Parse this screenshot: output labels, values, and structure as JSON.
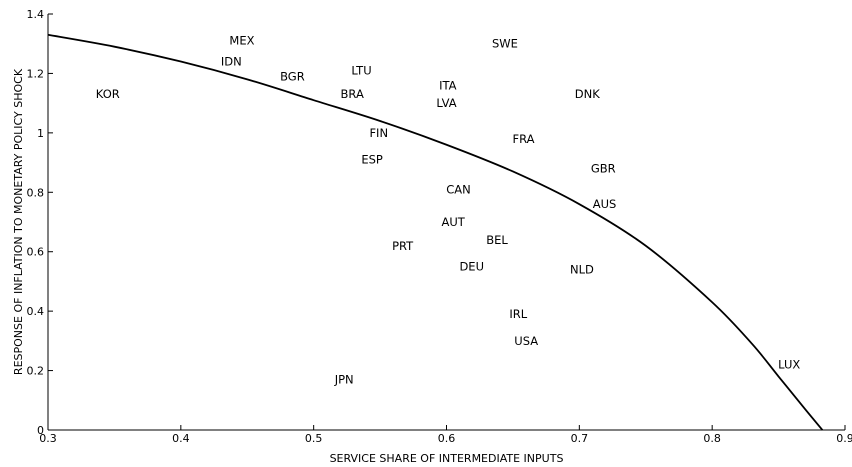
{
  "chart_data": {
    "type": "scatter",
    "xlabel": "SERVICE SHARE OF INTERMEDIATE INPUTS",
    "ylabel": "RESPONSE OF INFLATION TO MONETARY POLICY SHOCK",
    "xlim": [
      0.3,
      0.9
    ],
    "ylim": [
      0,
      1.4
    ],
    "xticks": [
      0.3,
      0.4,
      0.5,
      0.6,
      0.7,
      0.8,
      0.9
    ],
    "xtick_labels": [
      "0.3",
      "0.4",
      "0.5",
      "0.6",
      "0.7",
      "0.8",
      "0.9"
    ],
    "yticks": [
      0,
      0.2,
      0.4,
      0.6,
      0.8,
      1,
      1.2,
      1.4
    ],
    "ytick_labels": [
      "0",
      "0.2",
      "0.4",
      "0.6",
      "0.8",
      "1",
      "1.2",
      "1.4"
    ],
    "grid": false,
    "points": [
      {
        "label": "KOR",
        "x": 0.345,
        "y": 1.13
      },
      {
        "label": "MEX",
        "x": 0.446,
        "y": 1.31
      },
      {
        "label": "IDN",
        "x": 0.438,
        "y": 1.24
      },
      {
        "label": "BGR",
        "x": 0.484,
        "y": 1.19
      },
      {
        "label": "LTU",
        "x": 0.536,
        "y": 1.21
      },
      {
        "label": "BRA",
        "x": 0.529,
        "y": 1.13
      },
      {
        "label": "SWE",
        "x": 0.644,
        "y": 1.3
      },
      {
        "label": "ITA",
        "x": 0.601,
        "y": 1.16
      },
      {
        "label": "LVA",
        "x": 0.6,
        "y": 1.1
      },
      {
        "label": "DNK",
        "x": 0.706,
        "y": 1.13
      },
      {
        "label": "FIN",
        "x": 0.549,
        "y": 1.0
      },
      {
        "label": "FRA",
        "x": 0.658,
        "y": 0.98
      },
      {
        "label": "ESP",
        "x": 0.544,
        "y": 0.91
      },
      {
        "label": "GBR",
        "x": 0.718,
        "y": 0.88
      },
      {
        "label": "CAN",
        "x": 0.609,
        "y": 0.81
      },
      {
        "label": "AUS",
        "x": 0.719,
        "y": 0.76
      },
      {
        "label": "AUT",
        "x": 0.605,
        "y": 0.7
      },
      {
        "label": "BEL",
        "x": 0.638,
        "y": 0.64
      },
      {
        "label": "PRT",
        "x": 0.567,
        "y": 0.62
      },
      {
        "label": "DEU",
        "x": 0.619,
        "y": 0.55
      },
      {
        "label": "NLD",
        "x": 0.702,
        "y": 0.54
      },
      {
        "label": "IRL",
        "x": 0.654,
        "y": 0.39
      },
      {
        "label": "USA",
        "x": 0.66,
        "y": 0.3
      },
      {
        "label": "JPN",
        "x": 0.523,
        "y": 0.17
      },
      {
        "label": "LUX",
        "x": 0.858,
        "y": 0.22
      }
    ],
    "fit_curve": {
      "x": [
        0.3,
        0.35,
        0.4,
        0.45,
        0.5,
        0.55,
        0.6,
        0.65,
        0.7,
        0.75,
        0.8,
        0.83,
        0.85,
        0.87,
        0.883
      ],
      "y": [
        1.33,
        1.29,
        1.24,
        1.18,
        1.11,
        1.04,
        0.96,
        0.87,
        0.76,
        0.62,
        0.43,
        0.29,
        0.18,
        0.07,
        0.0
      ]
    }
  }
}
